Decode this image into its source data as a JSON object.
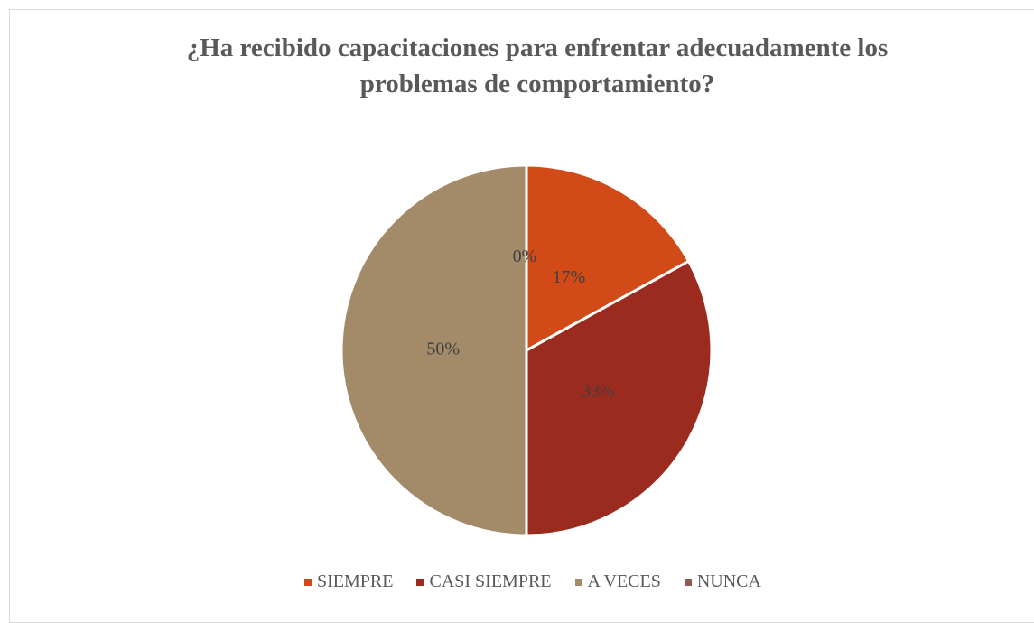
{
  "chart_data": {
    "type": "pie",
    "title": "¿Ha recibido capacitaciones para enfrentar adecuadamente los problemas de comportamiento?",
    "categories": [
      "SIEMPRE",
      "CASI SIEMPRE",
      "A VECES",
      "NUNCA"
    ],
    "values": [
      17,
      33,
      50,
      0
    ],
    "value_labels": [
      "17%",
      "33%",
      "50%",
      "0%"
    ],
    "colors": [
      "#d14a17",
      "#9b2b1f",
      "#a38b69",
      "#8f5a4f"
    ],
    "legend": "bottom"
  }
}
